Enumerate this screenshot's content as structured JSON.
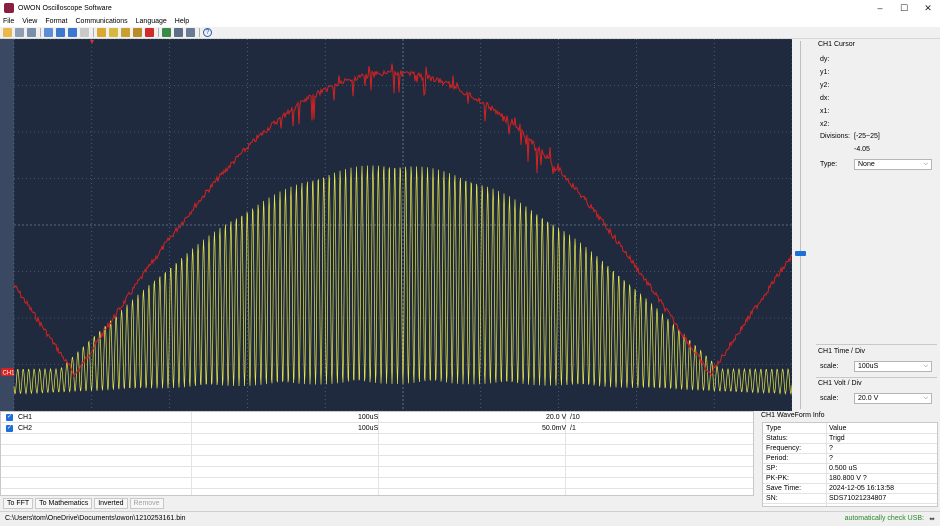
{
  "window": {
    "title": "OWON Oscilloscope Software",
    "minimize_glyph": "–",
    "maximize_glyph": "☐",
    "close_glyph": "✕"
  },
  "menu": [
    "File",
    "View",
    "Format",
    "Communications",
    "Language",
    "Help"
  ],
  "toolbar": {
    "icons": [
      "folder-open-icon",
      "print-icon",
      "print-preview-icon",
      "zoom-icon",
      "layout-icon",
      "cursor-lines-icon",
      "vertical-cursor-icon",
      "run-icon",
      "trigger-icon",
      "step-back-icon",
      "step-icon",
      "stop-icon",
      "save-icon",
      "bitmap-icon",
      "export-icon",
      "help-icon"
    ],
    "help_glyph": "?"
  },
  "scope": {
    "background": "#1f2a3e",
    "grid_color": "#6a7a96",
    "ch1_color": "#e8e84a",
    "ch2_color": "#d42222",
    "ch1_marker": "CH1"
  },
  "cursor_panel": {
    "title": "CH1 Cursor",
    "fields": [
      "dy:",
      "y1:",
      "y2:",
      "dx:",
      "x1:",
      "x2:"
    ],
    "divisions_label": "Divisions:",
    "divisions_range": "[-25~25]",
    "divisions_value": "-4.05",
    "type_label": "Type:",
    "type_value": "None"
  },
  "time_panel": {
    "title": "CH1 Time / Div",
    "scale_label": "scale:",
    "scale_value": "100uS"
  },
  "volt_panel": {
    "title": "CH1 Volt / Div",
    "scale_label": "scale:",
    "scale_value": "20.0 V"
  },
  "channels": [
    {
      "name": "CH1",
      "timebase": "100uS",
      "volts": "20.0 V",
      "probe": "/10",
      "checked": true
    },
    {
      "name": "CH2",
      "timebase": "100uS",
      "volts": "50.0mV",
      "probe": "/1",
      "checked": true
    }
  ],
  "bottom_tabs": [
    {
      "label": "To FFT",
      "enabled": true
    },
    {
      "label": "To Mathematics",
      "enabled": true
    },
    {
      "label": "Inverted",
      "enabled": true
    },
    {
      "label": "Remove",
      "enabled": false
    }
  ],
  "waveform_info": {
    "title": "CH1 WaveForm Info",
    "header": {
      "key": "Type",
      "value": "Value"
    },
    "rows": [
      {
        "key": "Status:",
        "value": "Trigd"
      },
      {
        "key": "Frequency:",
        "value": "?"
      },
      {
        "key": "Period:",
        "value": "?"
      },
      {
        "key": "SP:",
        "value": "0.500 uS"
      },
      {
        "key": "PK-PK:",
        "value": "180.800 V ?"
      },
      {
        "key": "Save Time:",
        "value": "2024-12-05 16:13:58"
      },
      {
        "key": "SN:",
        "value": "SDS71021234807"
      }
    ]
  },
  "status": {
    "path": "C:\\Users\\tom\\OneDrive\\Documents\\owon\\1210253161.bin",
    "usb_text": "automatically check USB:",
    "usb_glyph": "⬌"
  }
}
